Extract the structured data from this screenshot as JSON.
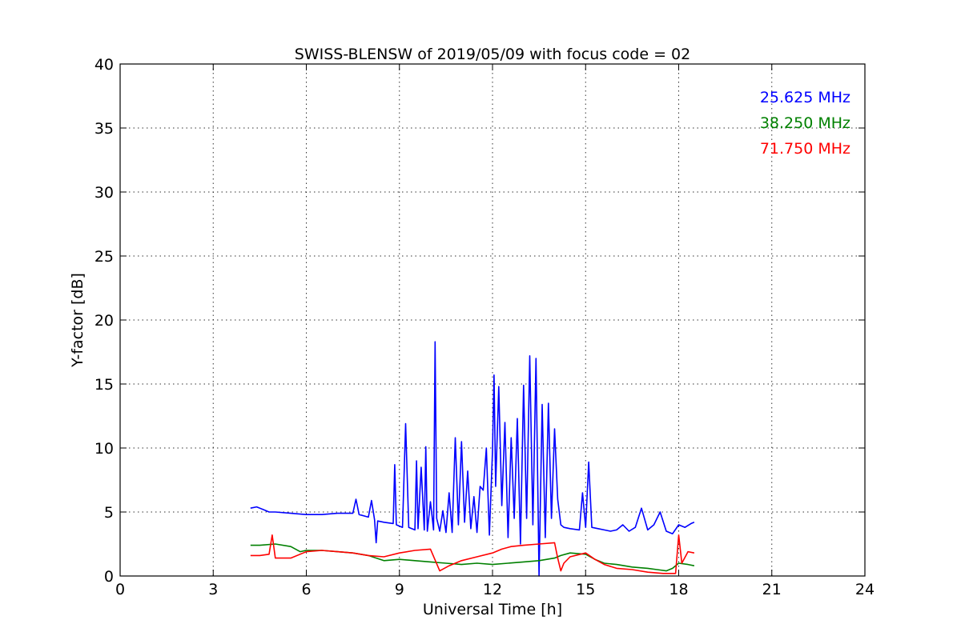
{
  "chart_data": {
    "type": "line",
    "title": "SWISS-BLENSW of 2019/05/09 with focus code = 02",
    "xlabel": "Universal Time [h]",
    "ylabel": "Y-factor [dB]",
    "xlim": [
      0,
      24
    ],
    "ylim": [
      0,
      40
    ],
    "xticks": [
      0,
      3,
      6,
      9,
      12,
      15,
      18,
      21,
      24
    ],
    "yticks": [
      0,
      5,
      10,
      15,
      20,
      25,
      30,
      35,
      40
    ],
    "grid": true,
    "legend_position": "top-right",
    "series": [
      {
        "name": "25.625 MHz",
        "color": "#0000ff",
        "x": [
          4.2,
          4.4,
          4.6,
          4.8,
          5.0,
          5.5,
          6.0,
          6.5,
          7.0,
          7.5,
          7.6,
          7.7,
          8.0,
          8.1,
          8.2,
          8.25,
          8.3,
          8.5,
          8.8,
          8.85,
          8.9,
          9.1,
          9.2,
          9.3,
          9.5,
          9.55,
          9.6,
          9.7,
          9.8,
          9.85,
          9.9,
          10.0,
          10.1,
          10.15,
          10.2,
          10.3,
          10.4,
          10.5,
          10.6,
          10.7,
          10.8,
          10.9,
          11.0,
          11.1,
          11.2,
          11.3,
          11.4,
          11.5,
          11.6,
          11.7,
          11.8,
          11.9,
          12.0,
          12.05,
          12.1,
          12.2,
          12.3,
          12.4,
          12.5,
          12.6,
          12.7,
          12.8,
          12.9,
          13.0,
          13.1,
          13.2,
          13.3,
          13.4,
          13.5,
          13.6,
          13.7,
          13.8,
          13.9,
          14.0,
          14.1,
          14.2,
          14.3,
          14.5,
          14.8,
          14.9,
          15.0,
          15.1,
          15.2,
          15.4,
          15.6,
          15.8,
          16.0,
          16.2,
          16.4,
          16.6,
          16.8,
          17.0,
          17.2,
          17.4,
          17.6,
          17.8,
          18.0,
          18.2,
          18.4,
          18.5
        ],
        "y": [
          5.3,
          5.4,
          5.2,
          5.0,
          5.0,
          4.9,
          4.8,
          4.8,
          4.9,
          4.9,
          6.0,
          4.8,
          4.6,
          5.9,
          4.4,
          2.6,
          4.3,
          4.2,
          4.1,
          8.7,
          4.0,
          3.8,
          11.9,
          3.8,
          3.6,
          9.0,
          3.7,
          8.5,
          3.6,
          10.1,
          3.5,
          5.8,
          3.6,
          18.3,
          4.5,
          3.5,
          5.1,
          3.4,
          6.5,
          3.4,
          10.8,
          4.0,
          10.5,
          4.2,
          8.2,
          3.7,
          6.2,
          3.4,
          7.0,
          6.7,
          10.0,
          3.2,
          9.8,
          15.7,
          7.0,
          14.8,
          5.5,
          12.0,
          3.0,
          10.8,
          4.5,
          12.3,
          2.5,
          14.9,
          4.5,
          17.2,
          4.0,
          17.0,
          0.0,
          13.4,
          3.0,
          13.5,
          4.5,
          11.5,
          6.0,
          4.0,
          3.8,
          3.7,
          3.6,
          6.5,
          3.8,
          8.9,
          3.8,
          3.7,
          3.6,
          3.5,
          3.6,
          4.0,
          3.5,
          3.8,
          5.3,
          3.6,
          4.0,
          5.0,
          3.5,
          3.3,
          4.0,
          3.8,
          4.1,
          4.2
        ]
      },
      {
        "name": "38.250 MHz",
        "color": "#008000",
        "x": [
          4.2,
          4.5,
          5.0,
          5.5,
          5.8,
          6.0,
          6.5,
          7.0,
          7.5,
          8.0,
          8.5,
          9.0,
          9.5,
          10.0,
          10.5,
          11.0,
          11.5,
          12.0,
          12.5,
          13.0,
          13.5,
          14.0,
          14.2,
          14.5,
          15.0,
          15.3,
          15.6,
          16.0,
          16.5,
          17.0,
          17.3,
          17.6,
          17.8,
          18.0,
          18.3,
          18.5
        ],
        "y": [
          2.4,
          2.4,
          2.5,
          2.3,
          1.9,
          2.0,
          2.0,
          1.9,
          1.8,
          1.6,
          1.2,
          1.3,
          1.2,
          1.1,
          1.0,
          0.9,
          1.0,
          0.9,
          1.0,
          1.1,
          1.2,
          1.4,
          1.6,
          1.8,
          1.7,
          1.3,
          1.0,
          0.9,
          0.7,
          0.6,
          0.5,
          0.4,
          0.6,
          1.0,
          0.9,
          0.8
        ]
      },
      {
        "name": "71.750 MHz",
        "color": "#ff0000",
        "x": [
          4.2,
          4.5,
          4.8,
          4.9,
          5.0,
          5.5,
          6.0,
          6.5,
          7.0,
          7.5,
          8.0,
          8.5,
          9.0,
          9.5,
          10.0,
          10.3,
          10.6,
          11.0,
          11.5,
          12.0,
          12.3,
          12.6,
          13.0,
          13.5,
          14.0,
          14.1,
          14.2,
          14.3,
          14.5,
          15.0,
          15.3,
          15.6,
          16.0,
          16.5,
          17.0,
          17.5,
          17.9,
          18.0,
          18.1,
          18.3,
          18.5
        ],
        "y": [
          1.6,
          1.6,
          1.7,
          3.2,
          1.4,
          1.4,
          1.9,
          2.0,
          1.9,
          1.8,
          1.6,
          1.5,
          1.8,
          2.0,
          2.1,
          0.4,
          0.8,
          1.2,
          1.5,
          1.8,
          2.1,
          2.3,
          2.4,
          2.5,
          2.6,
          1.4,
          0.4,
          1.0,
          1.5,
          1.8,
          1.3,
          0.9,
          0.6,
          0.5,
          0.3,
          0.2,
          0.2,
          3.2,
          1.0,
          1.9,
          1.8
        ]
      }
    ]
  }
}
